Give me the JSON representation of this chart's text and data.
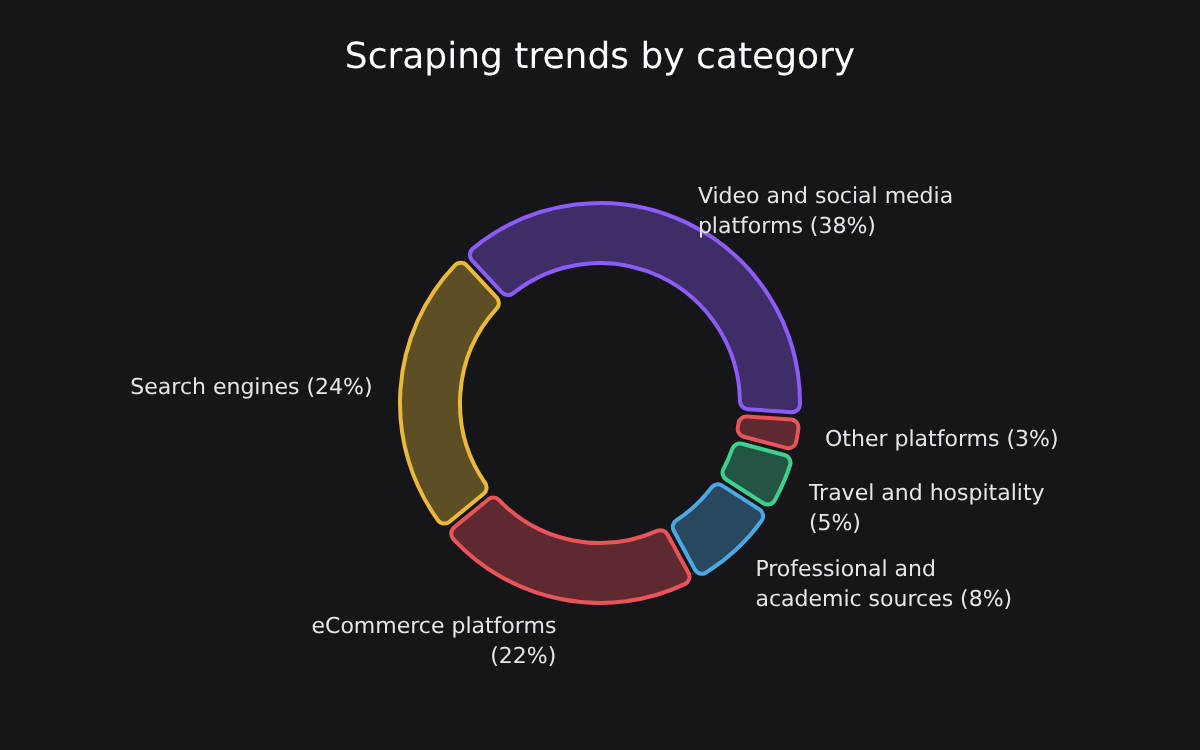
{
  "chart_data": {
    "type": "donut",
    "title": "Scraping trends by category",
    "categories": [
      "Video and social media platforms",
      "Other platforms",
      "Travel and hospitality",
      "Professional and academic sources",
      "eCommerce platforms",
      "Search engines"
    ],
    "values": [
      38,
      3,
      5,
      8,
      22,
      24
    ],
    "value_labels": [
      "(38%)",
      "(3%)",
      "(5%)",
      "(8%)",
      "(22%)",
      "(24%)"
    ],
    "colors": [
      "#8b5cf6",
      "#e8545a",
      "#3fcf8e",
      "#4ba8e0",
      "#e8545a",
      "#e8b93a"
    ],
    "legend": false
  }
}
